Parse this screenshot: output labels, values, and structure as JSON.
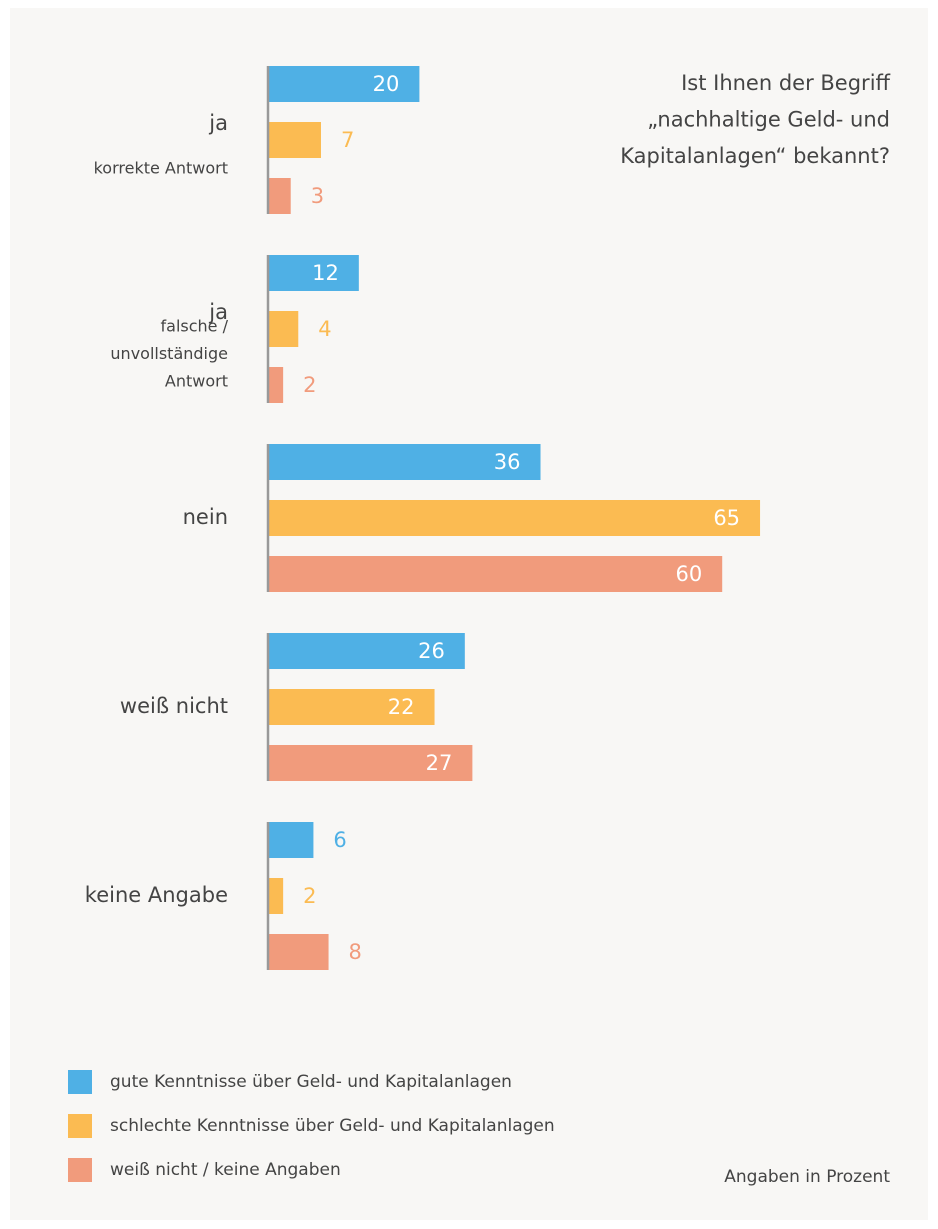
{
  "chart_data": {
    "type": "bar",
    "orientation": "horizontal",
    "title": [
      "Ist Ihnen der Begriff",
      "„nachhaltige Geld- und",
      "Kapitalanlagen“ bekannt?"
    ],
    "categories": [
      "ja",
      "ja",
      "nein",
      "weiß nicht",
      "keine Angabe"
    ],
    "category_notes": [
      [
        "korrekte Antwort"
      ],
      [
        "falsche /",
        "unvollständige",
        "Antwort"
      ],
      [],
      [],
      []
    ],
    "series": [
      {
        "name": "gute Kenntnisse über Geld- und Kapitalanlagen",
        "color": "#4fb0e5",
        "values": [
          20,
          12,
          36,
          26,
          6
        ]
      },
      {
        "name": "schlechte Kenntnisse über Geld- und Kapitalanlagen",
        "color": "#fbbb52",
        "values": [
          7,
          4,
          65,
          22,
          2
        ]
      },
      {
        "name": "weiß nicht / keine Angaben",
        "color": "#f19b7c",
        "values": [
          3,
          2,
          60,
          27,
          8
        ]
      }
    ],
    "note": "Angaben in Prozent"
  }
}
